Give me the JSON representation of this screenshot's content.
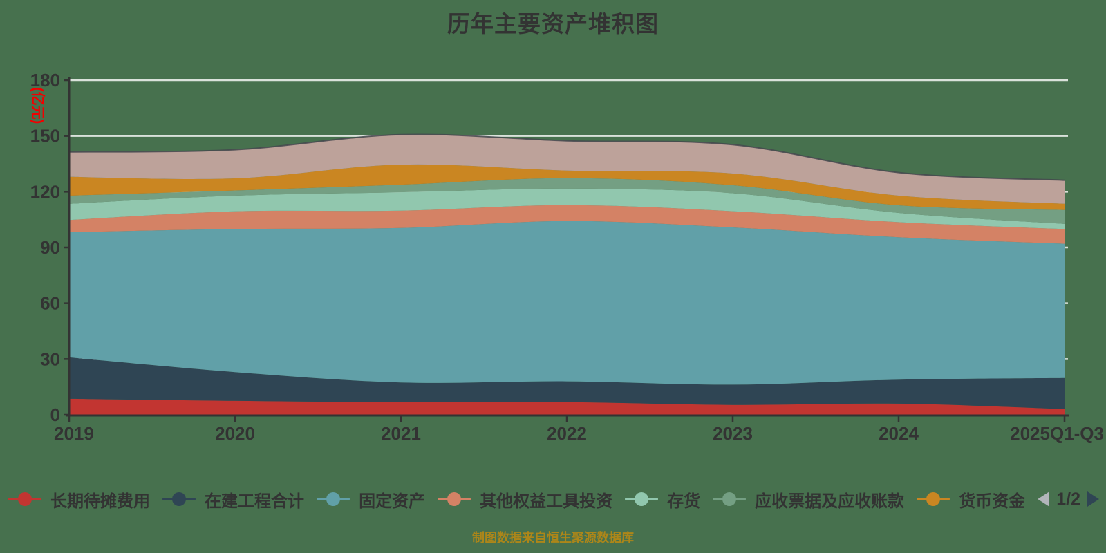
{
  "title": "历年主要资产堆积图",
  "footer": {
    "text": "制图数据来自恒生聚源数据库",
    "color": "#AD8619"
  },
  "colors": {
    "background": "#47714E",
    "axis": "#333333",
    "tick_label": "#333333",
    "grid": "rgba(255,255,255,0.8)",
    "stack_top_line": "#44484d",
    "y_axis_name": "#F20000"
  },
  "y_axis": {
    "name": "(亿元)",
    "min": 0,
    "max": 180,
    "interval": 30
  },
  "legend": {
    "items": [
      {
        "label": "长期待摊费用",
        "color": "#c23531"
      },
      {
        "label": "在建工程合计",
        "color": "#2f4554"
      },
      {
        "label": "固定资产",
        "color": "#61a0a8"
      },
      {
        "label": "其他权益工具投资",
        "color": "#d48265"
      },
      {
        "label": "存货",
        "color": "#91c7ae"
      },
      {
        "label": "应收票据及应收账款",
        "color": "#749f83"
      },
      {
        "label": "货币资金",
        "color": "#ca8622"
      }
    ],
    "pager": {
      "text": "1/2",
      "prev_color": "#b2b5ba",
      "next_color": "#2f4554"
    }
  },
  "chart_data": {
    "type": "area",
    "stacked": true,
    "smooth": true,
    "title": "历年主要资产堆积图",
    "categories": [
      "2019",
      "2020",
      "2021",
      "2022",
      "2023",
      "2024",
      "2025Q1-Q3"
    ],
    "ylabel": "(亿元)",
    "ylim": [
      0,
      180
    ],
    "y_interval": 30,
    "grid": true,
    "legend_position": "bottom",
    "series": [
      {
        "name": "长期待摊费用",
        "color": "#c23531",
        "values": [
          8.6,
          7.5,
          6.8,
          6.8,
          5.3,
          6.0,
          3.1
        ]
      },
      {
        "name": "在建工程合计",
        "color": "#2f4554",
        "values": [
          22.3,
          15.5,
          10.6,
          11.2,
          10.9,
          12.9,
          16.7
        ]
      },
      {
        "name": "固定资产",
        "color": "#61a0a8",
        "values": [
          67.3,
          76.9,
          83.1,
          86.2,
          84.6,
          76.6,
          72.2
        ]
      },
      {
        "name": "其他权益工具投资",
        "color": "#d48265",
        "values": [
          6.6,
          9.5,
          9.3,
          8.6,
          8.7,
          8.1,
          7.9
        ]
      },
      {
        "name": "存货",
        "color": "#91c7ae",
        "values": [
          8.7,
          8.5,
          9.9,
          8.9,
          9.7,
          5.0,
          2.8
        ]
      },
      {
        "name": "应收票据及应收账款",
        "color": "#749f83",
        "values": [
          4.4,
          2.8,
          4.1,
          5.6,
          4.3,
          4.1,
          7.5
        ]
      },
      {
        "name": "货币资金",
        "color": "#ca8622",
        "values": [
          10.1,
          6.5,
          10.8,
          4.1,
          6.3,
          5.2,
          3.3
        ]
      },
      {
        "name": "",
        "legend_visible": false,
        "color": "#bda29a",
        "values": [
          13.4,
          15.4,
          16.1,
          16.0,
          15.5,
          12.4,
          12.7
        ]
      }
    ]
  }
}
